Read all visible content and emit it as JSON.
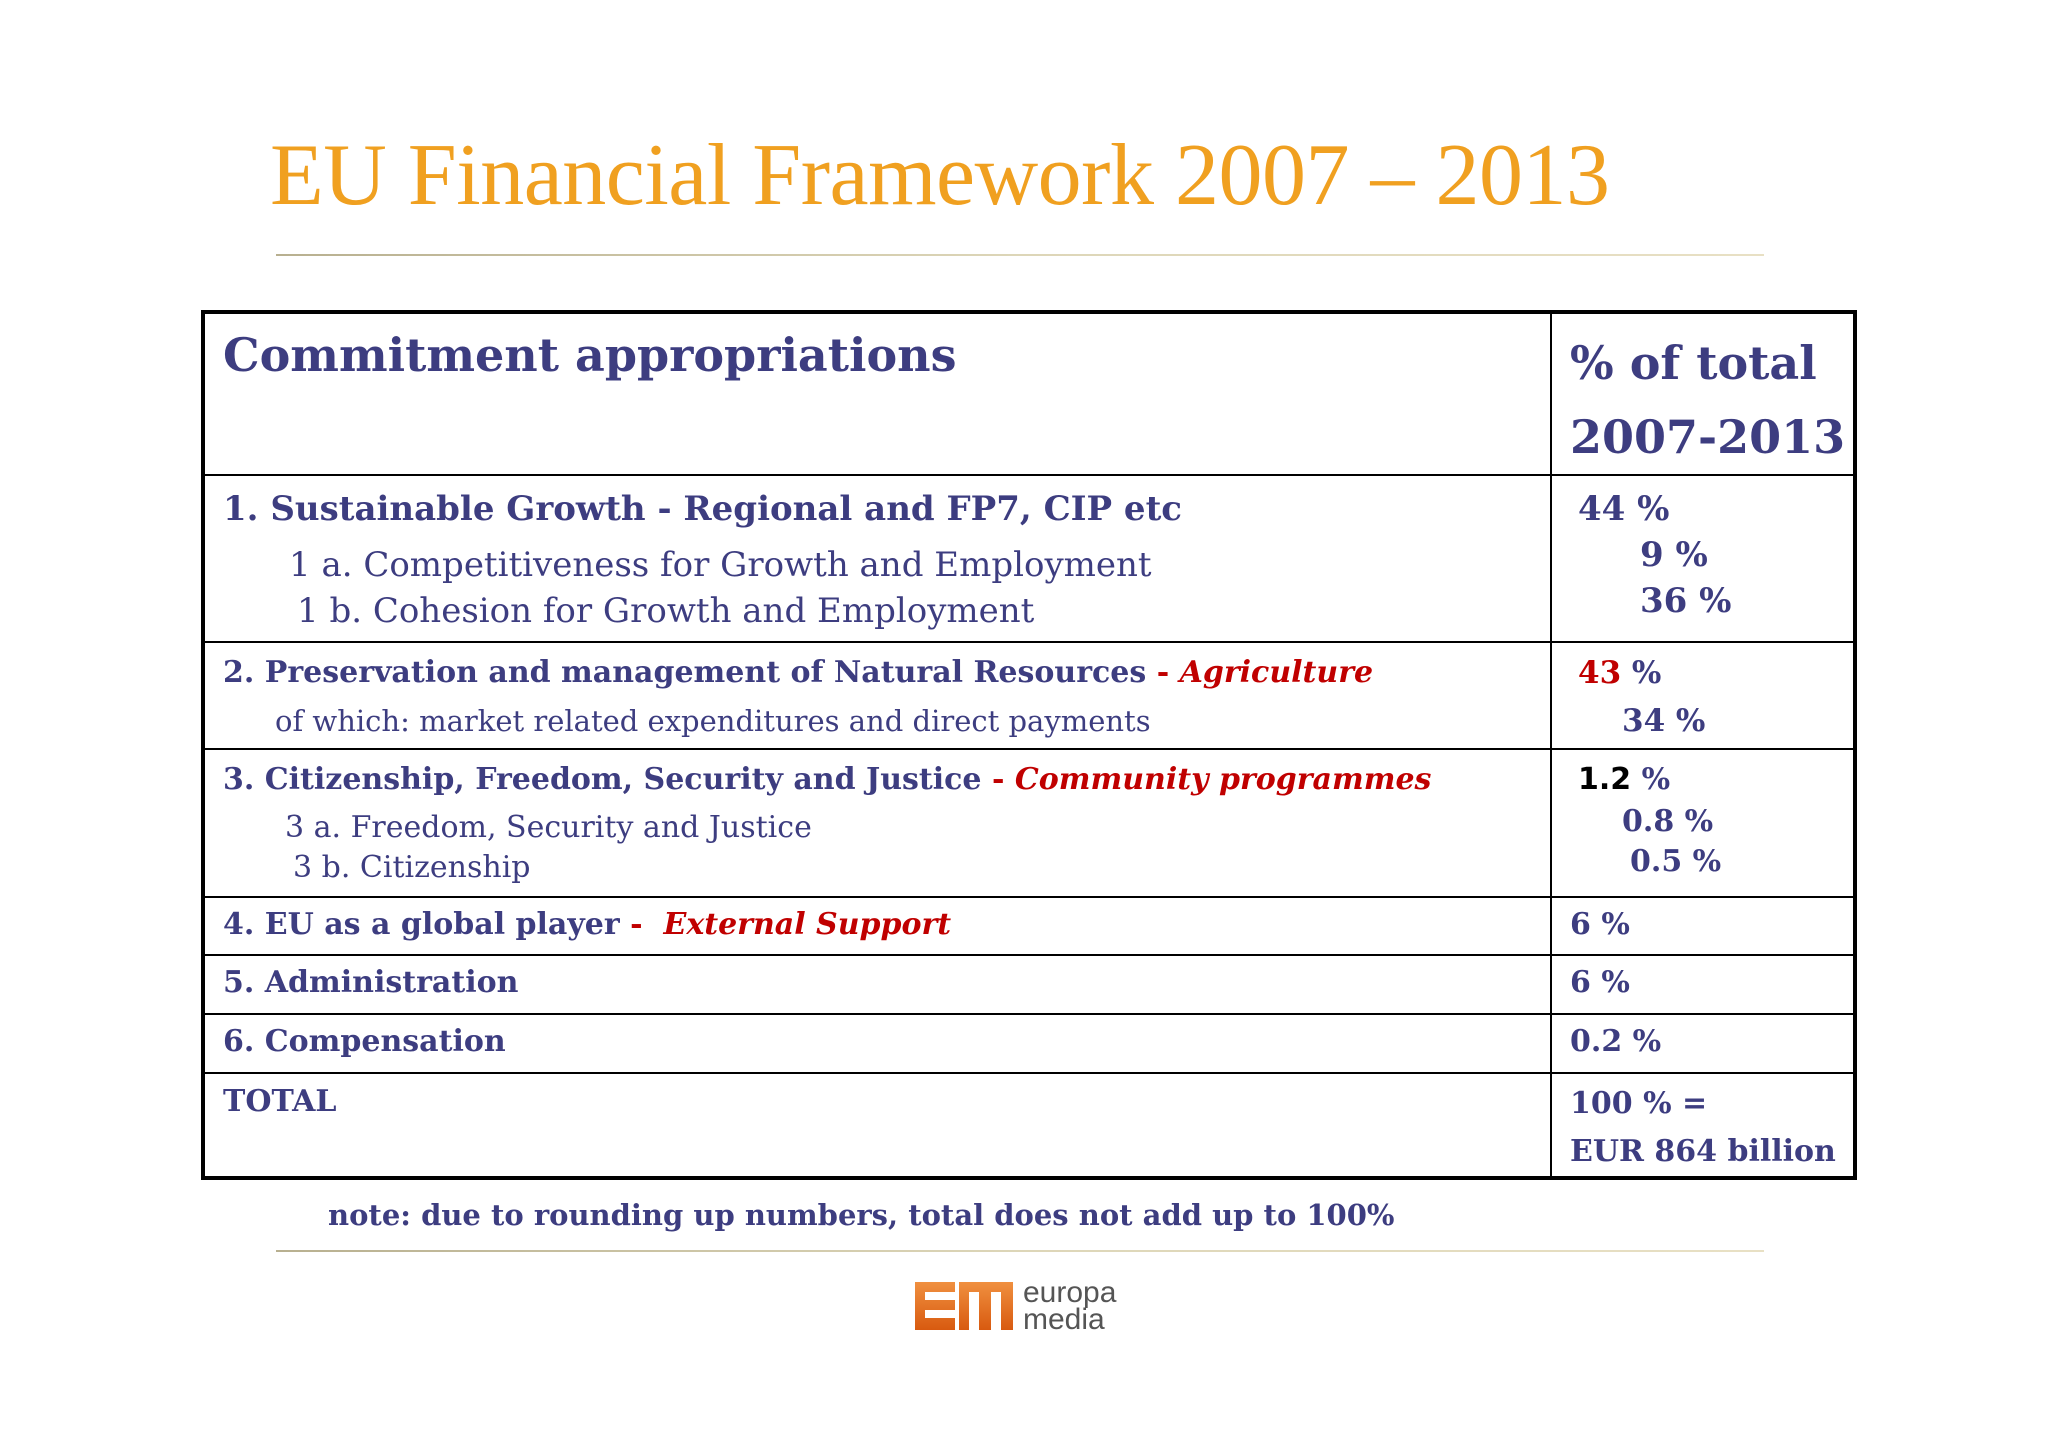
{
  "title": "EU Financial Framework 2007 – 2013",
  "header": {
    "col1": "Commitment appropriations",
    "col2_line1": "% of total",
    "col2_line2": "2007-2013"
  },
  "rows": [
    {
      "main": "1. Sustainable Growth  - Regional and FP7, CIP etc",
      "subs": [
        "1 a. Competitiveness for Growth and Employment",
        "1 b. Cohesion for Growth and Employment"
      ],
      "pct_main": "44 %",
      "pct_subs": [
        "9 %",
        "36 %"
      ]
    },
    {
      "main": "2. Preservation and management of Natural Resources",
      "main_sep": " - ",
      "main_tag": "Agriculture",
      "subs": [
        "of which: market related expenditures and direct payments"
      ],
      "pct_main_num": "43",
      "pct_main_unit": " %",
      "pct_subs": [
        "34 %"
      ]
    },
    {
      "main": "3. Citizenship, Freedom, Security and Justice",
      "main_sep": " - ",
      "main_tag": "Community programmes",
      "subs": [
        "3 a. Freedom, Security and Justice",
        "3 b. Citizenship"
      ],
      "pct_main_num": "1.2",
      "pct_main_unit": " %",
      "pct_subs": [
        "0.8 %",
        "0.5 %"
      ]
    },
    {
      "main": "4. EU as a global player",
      "main_sep": " -  ",
      "main_tag": "External Support",
      "pct_main": "6 %"
    },
    {
      "main": "5. Administration",
      "pct_main": "6 %"
    },
    {
      "main": "6. Compensation",
      "pct_main": "0.2 %"
    },
    {
      "main": "TOTAL",
      "pct_line1": "100 % =",
      "pct_line2": "EUR 864 billion"
    }
  ],
  "note": "note:  due to rounding up numbers, total does not add up to 100%",
  "logo": {
    "line1": "europa",
    "line2": "media"
  },
  "colors": {
    "title": "#f0a020",
    "text": "#3d3d80",
    "accent_red": "#c00000",
    "logo_orange": "#e07020"
  }
}
